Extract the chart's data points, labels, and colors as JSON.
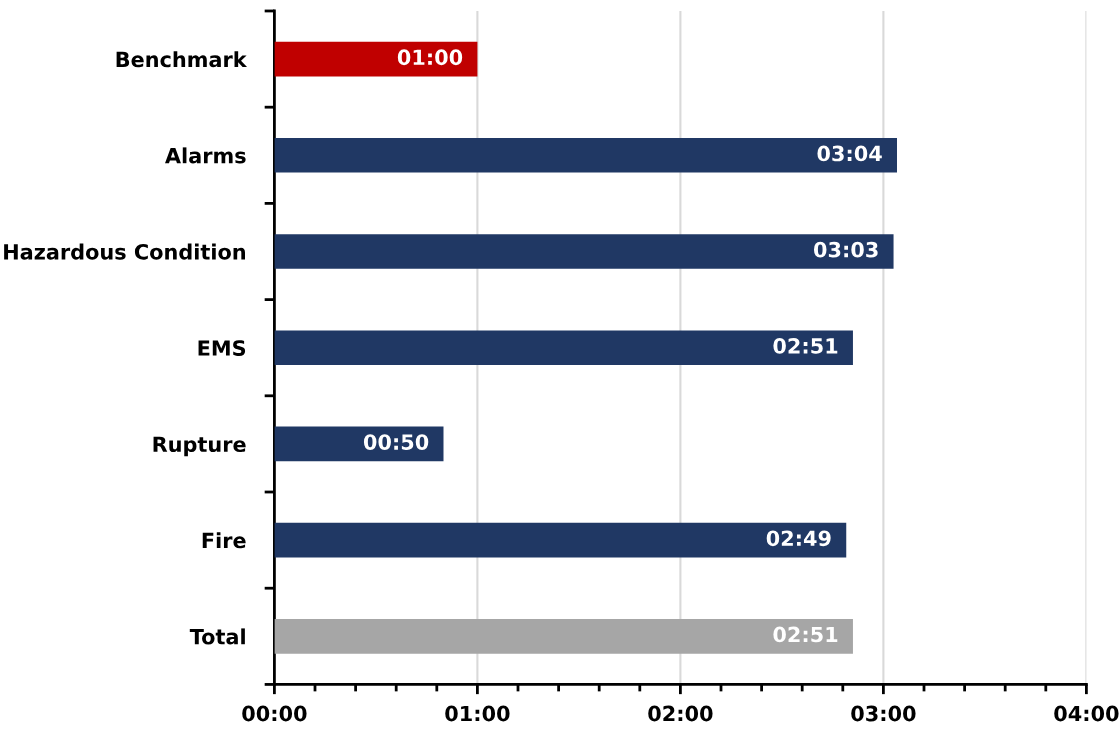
{
  "chart_data": {
    "type": "bar",
    "orientation": "horizontal",
    "categories": [
      "Benchmark",
      "Alarms",
      "Hazardous Condition",
      "EMS",
      "Rupture",
      "Fire",
      "Total"
    ],
    "values": [
      1.0,
      3.067,
      3.05,
      2.85,
      0.833,
      2.817,
      2.85
    ],
    "colors": [
      "#c00000",
      "#203864",
      "#203864",
      "#203864",
      "#203864",
      "#203864",
      "#a6a6a6"
    ],
    "value_labels": [
      "01:00",
      "03:04",
      "03:03",
      "02:51",
      "00:50",
      "02:49",
      "02:51"
    ],
    "xlim": [
      0,
      4
    ],
    "xticks": [
      {
        "value": 0,
        "label": "00:00"
      },
      {
        "value": 0.2,
        "label": null
      },
      {
        "value": 0.4,
        "label": null
      },
      {
        "value": 0.6,
        "label": null
      },
      {
        "value": 0.8,
        "label": null
      },
      {
        "value": 1,
        "label": "01:00"
      },
      {
        "value": 1.2,
        "label": null
      },
      {
        "value": 1.4,
        "label": null
      },
      {
        "value": 1.6,
        "label": null
      },
      {
        "value": 1.8,
        "label": null
      },
      {
        "value": 2,
        "label": "02:00"
      },
      {
        "value": 2.2,
        "label": null
      },
      {
        "value": 2.4,
        "label": null
      },
      {
        "value": 2.6,
        "label": null
      },
      {
        "value": 2.8,
        "label": null
      },
      {
        "value": 3,
        "label": "03:00"
      },
      {
        "value": 3.2,
        "label": null
      },
      {
        "value": 3.4,
        "label": null
      },
      {
        "value": 3.6,
        "label": null
      },
      {
        "value": 3.8,
        "label": null
      },
      {
        "value": 4,
        "label": "04:00"
      }
    ],
    "grid": "x",
    "legend": false
  }
}
